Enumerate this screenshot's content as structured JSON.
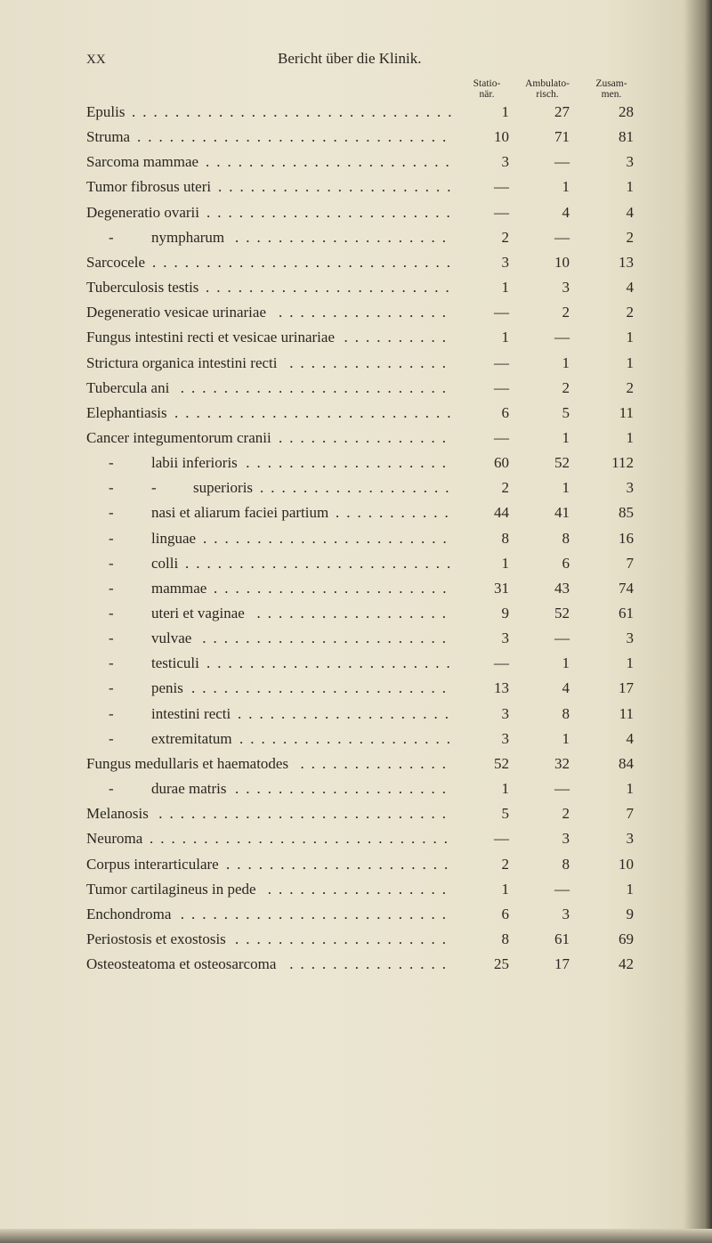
{
  "header": {
    "page_number": "XX",
    "running_title": "Bericht über die Klinik."
  },
  "columns": [
    [
      "Statio-",
      "när."
    ],
    [
      "Ambulato-",
      "risch."
    ],
    [
      "Zusam-",
      "men."
    ]
  ],
  "rows": [
    {
      "dash": "",
      "label": "Epulis",
      "v": [
        "1",
        "27",
        "28"
      ]
    },
    {
      "dash": "",
      "label": "Struma",
      "v": [
        "10",
        "71",
        "81"
      ]
    },
    {
      "dash": "",
      "label": "Sarcoma mammae",
      "v": [
        "3",
        "—",
        "3"
      ]
    },
    {
      "dash": "",
      "label": "Tumor fibrosus uteri",
      "v": [
        "—",
        "1",
        "1"
      ]
    },
    {
      "dash": "",
      "label": "Degeneratio ovarii",
      "v": [
        "—",
        "4",
        "4"
      ]
    },
    {
      "dash": "-",
      "label": "nympharum",
      "v": [
        "2",
        "—",
        "2"
      ]
    },
    {
      "dash": "",
      "label": "Sarcocele",
      "v": [
        "3",
        "10",
        "13"
      ]
    },
    {
      "dash": "",
      "label": "Tuberculosis testis",
      "v": [
        "1",
        "3",
        "4"
      ]
    },
    {
      "dash": "",
      "label": "Degeneratio vesicae urinariae",
      "v": [
        "—",
        "2",
        "2"
      ]
    },
    {
      "dash": "",
      "label": "Fungus intestini recti et vesicae urinariae",
      "v": [
        "1",
        "—",
        "1"
      ]
    },
    {
      "dash": "",
      "label": "Strictura organica intestini recti",
      "v": [
        "—",
        "1",
        "1"
      ]
    },
    {
      "dash": "",
      "label": "Tubercula ani",
      "v": [
        "—",
        "2",
        "2"
      ]
    },
    {
      "dash": "",
      "label": "Elephantiasis",
      "v": [
        "6",
        "5",
        "11"
      ]
    },
    {
      "dash": "",
      "label": "Cancer integumentorum cranii",
      "v": [
        "—",
        "1",
        "1"
      ]
    },
    {
      "dash": "-",
      "label": "labii inferioris",
      "v": [
        "60",
        "52",
        "112"
      ]
    },
    {
      "dash": "-",
      "dash2": "-",
      "label": "superioris",
      "v": [
        "2",
        "1",
        "3"
      ]
    },
    {
      "dash": "-",
      "label": "nasi et aliarum faciei partium",
      "v": [
        "44",
        "41",
        "85"
      ]
    },
    {
      "dash": "-",
      "label": "linguae",
      "v": [
        "8",
        "8",
        "16"
      ]
    },
    {
      "dash": "-",
      "label": "colli",
      "v": [
        "1",
        "6",
        "7"
      ]
    },
    {
      "dash": "-",
      "label": "mammae",
      "v": [
        "31",
        "43",
        "74"
      ]
    },
    {
      "dash": "-",
      "label": "uteri et vaginae",
      "v": [
        "9",
        "52",
        "61"
      ]
    },
    {
      "dash": "-",
      "label": "vulvae",
      "v": [
        "3",
        "—",
        "3"
      ]
    },
    {
      "dash": "-",
      "label": "testiculi",
      "v": [
        "—",
        "1",
        "1"
      ]
    },
    {
      "dash": "-",
      "label": "penis",
      "v": [
        "13",
        "4",
        "17"
      ]
    },
    {
      "dash": "-",
      "label": "intestini recti",
      "v": [
        "3",
        "8",
        "11"
      ]
    },
    {
      "dash": "-",
      "label": "extremitatum",
      "v": [
        "3",
        "1",
        "4"
      ]
    },
    {
      "dash": "",
      "label": "Fungus medullaris et haematodes",
      "v": [
        "52",
        "32",
        "84"
      ]
    },
    {
      "dash": "-",
      "label": "durae matris",
      "v": [
        "1",
        "—",
        "1"
      ]
    },
    {
      "dash": "",
      "label": "Melanosis",
      "v": [
        "5",
        "2",
        "7"
      ]
    },
    {
      "dash": "",
      "label": "Neuroma",
      "v": [
        "—",
        "3",
        "3"
      ]
    },
    {
      "dash": "",
      "label": "Corpus interarticulare",
      "v": [
        "2",
        "8",
        "10"
      ]
    },
    {
      "dash": "",
      "label": "Tumor cartilagineus in pede",
      "v": [
        "1",
        "—",
        "1"
      ]
    },
    {
      "dash": "",
      "label": "Enchondroma",
      "v": [
        "6",
        "3",
        "9"
      ]
    },
    {
      "dash": "",
      "label": "Periostosis et exostosis",
      "v": [
        "8",
        "61",
        "69"
      ]
    },
    {
      "dash": "",
      "label": "Osteosteatoma et osteosarcoma",
      "v": [
        "25",
        "17",
        "42"
      ]
    }
  ]
}
